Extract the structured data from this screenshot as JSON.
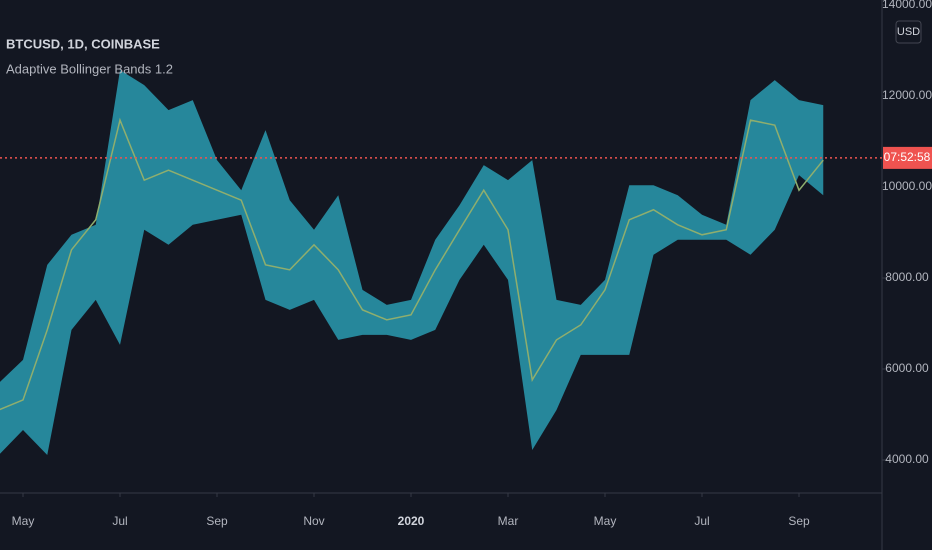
{
  "chart_data": {
    "type": "band",
    "title": "BTCUSD, 1D, COINBASE",
    "subtitle": "Adaptive Bollinger Bands 1.2",
    "currency_button": "USD",
    "countdown": "07:52:58",
    "price_line": 10640,
    "price_line_color": "#ef5350",
    "categories": [
      null,
      "May",
      null,
      null,
      null,
      "Jul",
      null,
      null,
      null,
      "Sep",
      null,
      null,
      null,
      "Nov",
      null,
      null,
      null,
      "2020",
      null,
      null,
      null,
      "Mar",
      null,
      null,
      null,
      "May",
      null,
      null,
      null,
      "Jul",
      null,
      null,
      null,
      "Sep",
      null
    ],
    "band": {
      "color": "#2a9bb0",
      "upper": [
        5690,
        6200,
        8290,
        8950,
        9170,
        12570,
        12240,
        11690,
        11910,
        10590,
        9930,
        11250,
        9710,
        9060,
        9820,
        7740,
        7410,
        7520,
        8840,
        9600,
        10480,
        10150,
        10590,
        7520,
        7410,
        7960,
        10040,
        10040,
        9820,
        9390,
        9170,
        11910,
        12350,
        11910,
        11800
      ],
      "lower": [
        4110,
        4660,
        4110,
        6860,
        7520,
        6530,
        9060,
        8730,
        9170,
        9280,
        9390,
        7520,
        7300,
        7520,
        6640,
        6750,
        6750,
        6640,
        6860,
        7960,
        8730,
        7960,
        4220,
        5100,
        6310,
        6310,
        6310,
        8510,
        8840,
        8840,
        8840,
        8510,
        9060,
        10260,
        9820
      ]
    },
    "close": {
      "color": "#8fae6e",
      "values": [
        5100,
        5320,
        6860,
        8620,
        9280,
        11470,
        10150,
        10370,
        10150,
        9930,
        9710,
        8290,
        8180,
        8730,
        8180,
        7300,
        7080,
        7190,
        8180,
        9060,
        9930,
        9060,
        5760,
        6640,
        6970,
        7740,
        9280,
        9500,
        9170,
        8950,
        9060,
        11470,
        11360,
        9930,
        10590
      ]
    },
    "ylim": [
      3275,
      14110
    ],
    "yticks": [
      {
        "value": 4000,
        "label": "4000.00"
      },
      {
        "value": 6000,
        "label": "6000.00"
      },
      {
        "value": 8000,
        "label": "8000.00"
      },
      {
        "value": 10000,
        "label": "10000.00"
      },
      {
        "value": 12000,
        "label": "12000.00"
      },
      {
        "value": 14000,
        "label": "14000.00"
      }
    ]
  }
}
